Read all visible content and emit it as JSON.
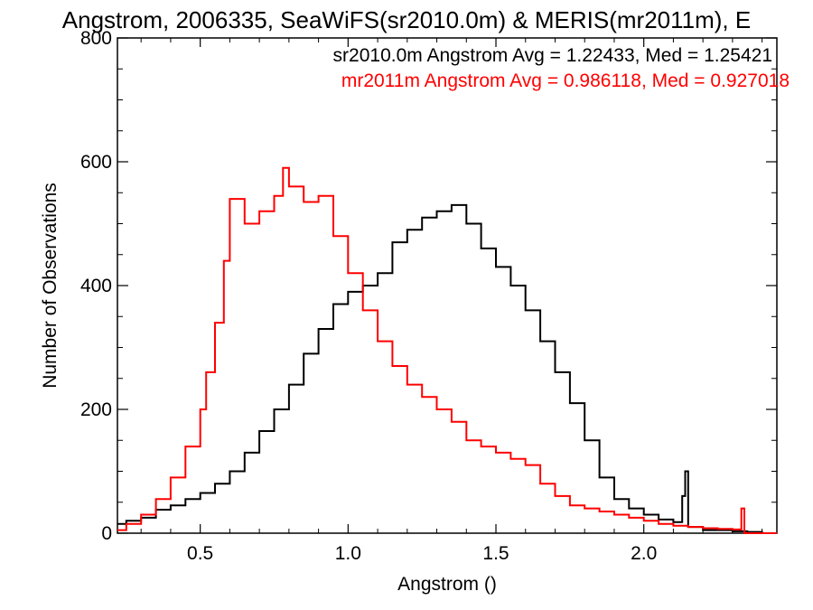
{
  "chart_data": {
    "type": "line",
    "title": "Angstrom, 2006335, SeaWiFS(sr2010.0m) & MERIS(mr2011m), E",
    "xlabel": "Angstrom ()",
    "ylabel": "Number of Observations",
    "xlim": [
      0.22,
      2.45
    ],
    "ylim": [
      0,
      800
    ],
    "x_ticks": [
      "0.5",
      "1.0",
      "1.5",
      "2.0"
    ],
    "y_ticks": [
      "0",
      "200",
      "400",
      "600",
      "800"
    ],
    "grid": false,
    "legend_position": "top-right",
    "annotations": [
      {
        "text": "sr2010.0m Angstrom Avg = 1.22433, Med = 1.25421",
        "color": "#000000"
      },
      {
        "text": "mr2011m Angstrom Avg = 0.986118, Med = 0.927018",
        "color": "#ff0000"
      }
    ],
    "series": [
      {
        "color": "#000000",
        "step": "histogram",
        "x": [
          0.22,
          0.25,
          0.3,
          0.35,
          0.4,
          0.45,
          0.5,
          0.55,
          0.6,
          0.65,
          0.7,
          0.75,
          0.8,
          0.85,
          0.9,
          0.95,
          1.0,
          1.05,
          1.1,
          1.15,
          1.2,
          1.25,
          1.3,
          1.35,
          1.4,
          1.45,
          1.5,
          1.55,
          1.6,
          1.65,
          1.7,
          1.75,
          1.8,
          1.85,
          1.9,
          1.95,
          2.0,
          2.05,
          2.1,
          2.13,
          2.14,
          2.15,
          2.2,
          2.3,
          2.35,
          2.4,
          2.45
        ],
        "y": [
          15,
          20,
          25,
          38,
          45,
          55,
          65,
          80,
          100,
          130,
          165,
          200,
          240,
          290,
          330,
          370,
          390,
          400,
          420,
          470,
          490,
          510,
          520,
          530,
          500,
          460,
          430,
          400,
          360,
          310,
          260,
          210,
          150,
          90,
          55,
          40,
          30,
          22,
          18,
          60,
          100,
          10,
          5,
          3,
          2,
          0,
          0
        ]
      },
      {
        "color": "#ff0000",
        "step": "histogram",
        "x": [
          0.22,
          0.25,
          0.3,
          0.35,
          0.4,
          0.45,
          0.5,
          0.52,
          0.55,
          0.58,
          0.6,
          0.65,
          0.7,
          0.75,
          0.78,
          0.8,
          0.85,
          0.9,
          0.95,
          1.0,
          1.05,
          1.1,
          1.15,
          1.2,
          1.25,
          1.3,
          1.35,
          1.4,
          1.45,
          1.5,
          1.55,
          1.6,
          1.65,
          1.7,
          1.75,
          1.8,
          1.85,
          1.9,
          1.95,
          2.0,
          2.05,
          2.1,
          2.15,
          2.2,
          2.25,
          2.3,
          2.33,
          2.34,
          2.35,
          2.45
        ],
        "y": [
          5,
          15,
          30,
          55,
          90,
          140,
          200,
          260,
          340,
          440,
          540,
          500,
          520,
          545,
          590,
          560,
          535,
          545,
          480,
          420,
          360,
          310,
          270,
          240,
          220,
          200,
          180,
          150,
          140,
          130,
          120,
          110,
          80,
          60,
          45,
          40,
          35,
          30,
          25,
          20,
          15,
          12,
          10,
          8,
          7,
          6,
          40,
          0,
          0,
          0
        ]
      }
    ]
  }
}
